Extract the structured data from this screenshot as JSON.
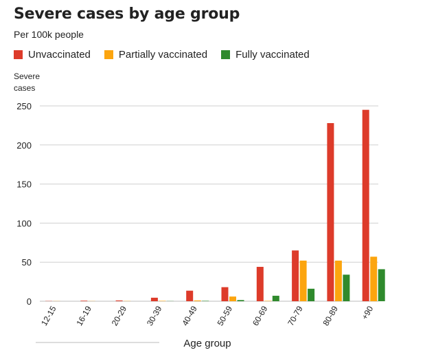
{
  "chart_data": {
    "type": "bar",
    "title": "Severe cases by age group",
    "subtitle": "Per 100k people",
    "ylabel_lines": [
      "Severe",
      "cases"
    ],
    "xlabel": "Age group",
    "ylim": [
      0,
      250
    ],
    "yticks": [
      0,
      50,
      100,
      150,
      200,
      250
    ],
    "grid": true,
    "legend_position": "top-left",
    "categories": [
      "12-15",
      "16-19",
      "20-29",
      "30-39",
      "40-49",
      "50-59",
      "60-69",
      "70-79",
      "80-89",
      "+90"
    ],
    "series": [
      {
        "name": "Unvaccinated",
        "color": "#dd3b2a",
        "values": [
          0.3,
          0.7,
          1,
          4.5,
          13.5,
          18,
          44,
          65,
          228,
          245
        ]
      },
      {
        "name": "Partially vaccinated",
        "color": "#fca50f",
        "values": [
          0.2,
          0.2,
          0.3,
          0.5,
          1,
          6,
          0.5,
          52,
          52,
          57
        ]
      },
      {
        "name": "Fully vaccinated",
        "color": "#2f8a2d",
        "values": [
          0,
          0,
          0,
          0.2,
          0.5,
          1.5,
          7,
          16,
          34,
          41
        ]
      }
    ]
  }
}
